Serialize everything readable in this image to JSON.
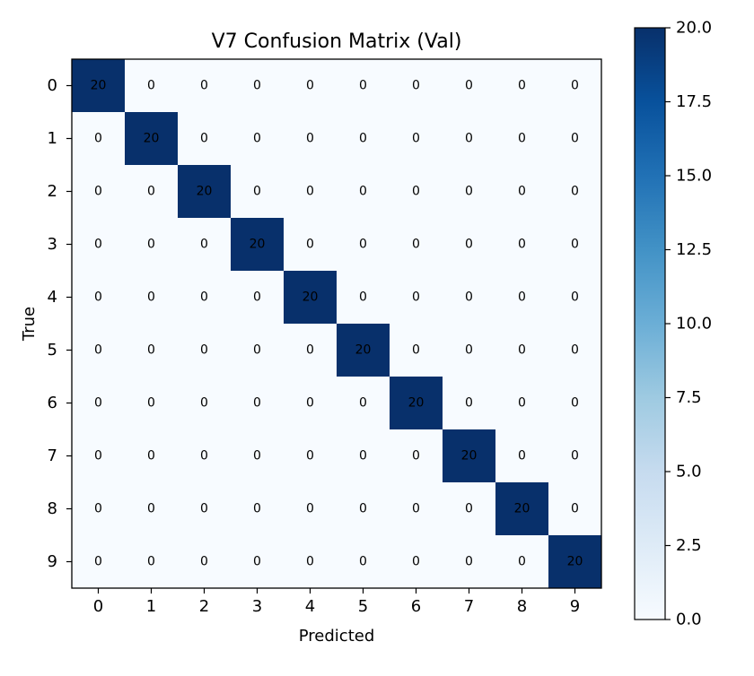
{
  "chart_data": {
    "type": "heatmap",
    "title": "V7 Confusion Matrix (Val)",
    "xlabel": "Predicted",
    "ylabel": "True",
    "x_labels": [
      "0",
      "1",
      "2",
      "3",
      "4",
      "5",
      "6",
      "7",
      "8",
      "9"
    ],
    "y_labels": [
      "0",
      "1",
      "2",
      "3",
      "4",
      "5",
      "6",
      "7",
      "8",
      "9"
    ],
    "values": [
      [
        20,
        0,
        0,
        0,
        0,
        0,
        0,
        0,
        0,
        0
      ],
      [
        0,
        20,
        0,
        0,
        0,
        0,
        0,
        0,
        0,
        0
      ],
      [
        0,
        0,
        20,
        0,
        0,
        0,
        0,
        0,
        0,
        0
      ],
      [
        0,
        0,
        0,
        20,
        0,
        0,
        0,
        0,
        0,
        0
      ],
      [
        0,
        0,
        0,
        0,
        20,
        0,
        0,
        0,
        0,
        0
      ],
      [
        0,
        0,
        0,
        0,
        0,
        20,
        0,
        0,
        0,
        0
      ],
      [
        0,
        0,
        0,
        0,
        0,
        0,
        20,
        0,
        0,
        0
      ],
      [
        0,
        0,
        0,
        0,
        0,
        0,
        0,
        20,
        0,
        0
      ],
      [
        0,
        0,
        0,
        0,
        0,
        0,
        0,
        0,
        20,
        0
      ],
      [
        0,
        0,
        0,
        0,
        0,
        0,
        0,
        0,
        0,
        20
      ]
    ],
    "colormap": "Blues",
    "colormap_low": "#f7fbff",
    "colormap_high": "#08306b",
    "colorbar_range": [
      0,
      20
    ],
    "colorbar_ticks": [
      "0.0",
      "2.5",
      "5.0",
      "7.5",
      "10.0",
      "12.5",
      "15.0",
      "17.5",
      "20.0"
    ],
    "grid": false
  }
}
